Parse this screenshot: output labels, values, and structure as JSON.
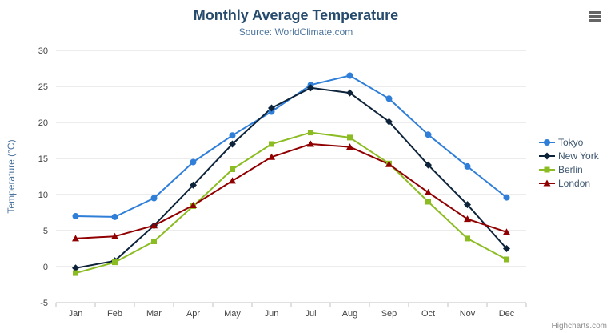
{
  "credit": "Highcharts.com",
  "chart_data": {
    "type": "line",
    "title": "Monthly Average Temperature",
    "subtitle": "Source: WorldClimate.com",
    "categories": [
      "Jan",
      "Feb",
      "Mar",
      "Apr",
      "May",
      "Jun",
      "Jul",
      "Aug",
      "Sep",
      "Oct",
      "Nov",
      "Dec"
    ],
    "xlabel": "",
    "ylabel": "Temperature (°C)",
    "ylim": [
      -5,
      30
    ],
    "ytick_interval": 5,
    "yticks": [
      -5,
      0,
      5,
      10,
      15,
      20,
      25,
      30
    ],
    "grid": true,
    "legend_position": "right",
    "colors": {
      "grid": "#d8d8d8",
      "axis_line": "#c0c0c0",
      "tick_label": "#444444",
      "axis_title": "#4d759e",
      "title": "#274b6d",
      "legend_text": "#3e576f"
    },
    "series": [
      {
        "name": "Tokyo",
        "color": "#2f7ed8",
        "marker": "circle",
        "values": [
          7.0,
          6.9,
          9.5,
          14.5,
          18.2,
          21.5,
          25.2,
          26.5,
          23.3,
          18.3,
          13.9,
          9.6
        ]
      },
      {
        "name": "New York",
        "color": "#0d233a",
        "marker": "diamond",
        "values": [
          -0.2,
          0.8,
          5.7,
          11.3,
          17.0,
          22.0,
          24.8,
          24.1,
          20.1,
          14.1,
          8.6,
          2.5
        ]
      },
      {
        "name": "Berlin",
        "color": "#8bbc21",
        "marker": "square",
        "values": [
          -0.9,
          0.6,
          3.5,
          8.4,
          13.5,
          17.0,
          18.6,
          17.9,
          14.3,
          9.0,
          3.9,
          1.0
        ]
      },
      {
        "name": "London",
        "color": "#910000",
        "marker": "triangle",
        "values": [
          3.9,
          4.2,
          5.7,
          8.5,
          11.9,
          15.2,
          17.0,
          16.6,
          14.2,
          10.3,
          6.6,
          4.8
        ]
      }
    ]
  }
}
